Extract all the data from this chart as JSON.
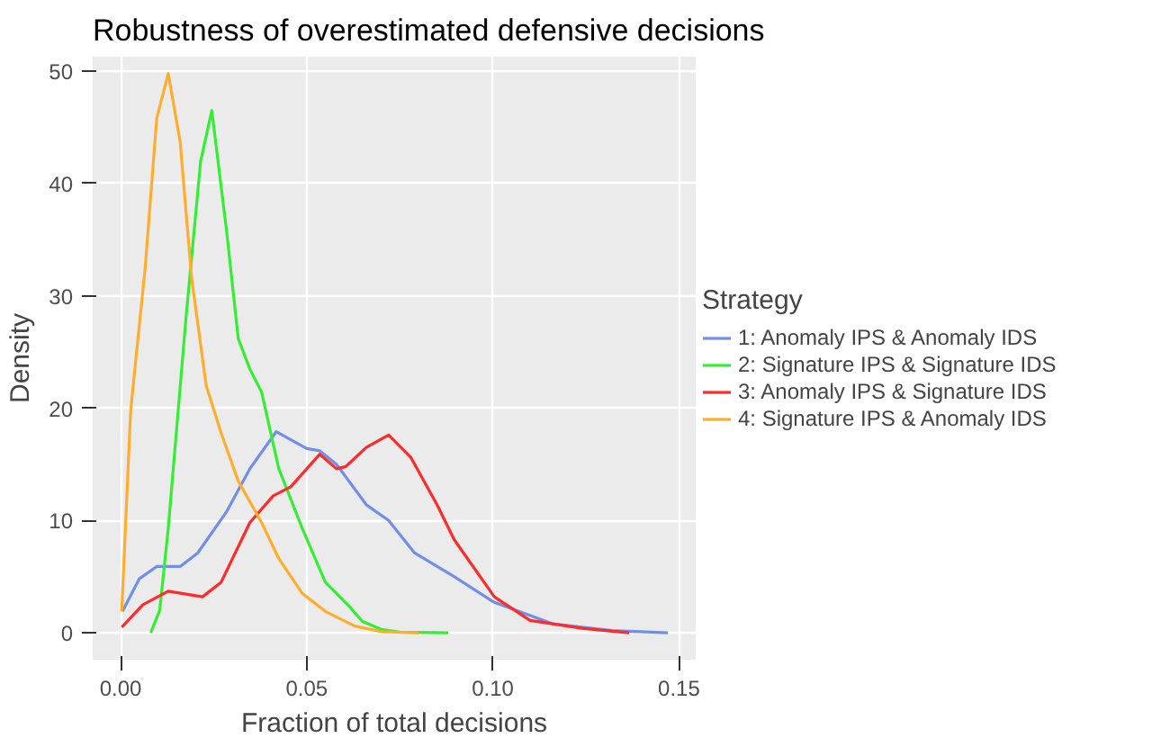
{
  "chart_data": {
    "type": "line",
    "title": "Robustness of overestimated defensive decisions",
    "xlabel": "Fraction of total decisions",
    "ylabel": "Density",
    "legend_title": "Strategy",
    "legend": "right",
    "grid": true,
    "marker": "none",
    "line_style": "solid",
    "xlim": [
      -0.0075,
      0.1545
    ],
    "ylim": [
      -2.4,
      51.3
    ],
    "xticks": [
      {
        "value": 0,
        "label": "0.00"
      },
      {
        "value": 0.05,
        "label": "0.05"
      },
      {
        "value": 0.1,
        "label": "0.10"
      },
      {
        "value": 0.15,
        "label": "0.15"
      }
    ],
    "yticks": [
      0,
      10,
      20,
      30,
      40,
      50
    ],
    "series": [
      {
        "name": "1: Anomaly IPS & Anomaly IDS",
        "color": "#6f8fe8",
        "x": [
          0.0005,
          0.005,
          0.0097,
          0.016,
          0.0207,
          0.0285,
          0.0347,
          0.0418,
          0.05,
          0.0535,
          0.058,
          0.066,
          0.072,
          0.079,
          0.0896,
          0.1004,
          0.116,
          0.132,
          0.147
        ],
        "values": [
          1.9,
          4.8,
          5.9,
          5.9,
          7.1,
          10.8,
          14.6,
          17.9,
          16.4,
          16.2,
          15,
          11.4,
          10,
          7.1,
          5,
          2.7,
          0.8,
          0.2,
          0
        ]
      },
      {
        "name": "2: Signature IPS & Signature IDS",
        "color": "#33ee33",
        "x": [
          0.0081,
          0.0105,
          0.0128,
          0.0175,
          0.0215,
          0.0245,
          0.0285,
          0.0316,
          0.0347,
          0.0379,
          0.0425,
          0.0488,
          0.055,
          0.0613,
          0.065,
          0.07,
          0.075,
          0.088
        ],
        "values": [
          0,
          2,
          9.3,
          27.8,
          42,
          46.5,
          35.7,
          26.2,
          23.5,
          21.4,
          14.6,
          9.3,
          4.5,
          2.4,
          1,
          0.3,
          0.05,
          0
        ]
      },
      {
        "name": "3: Anomaly IPS & Signature IDS",
        "color": "#ff2a2a",
        "x": [
          0.0003,
          0.006,
          0.0128,
          0.022,
          0.027,
          0.0347,
          0.041,
          0.0457,
          0.0535,
          0.058,
          0.0605,
          0.066,
          0.072,
          0.078,
          0.085,
          0.0896,
          0.1004,
          0.11,
          0.124,
          0.1366
        ],
        "values": [
          0.5,
          2.5,
          3.7,
          3.2,
          4.5,
          9.8,
          12.2,
          13,
          15.9,
          14.6,
          14.8,
          16.5,
          17.6,
          15.6,
          11.4,
          8.3,
          3.2,
          1.1,
          0.4,
          0
        ]
      },
      {
        "name": "4: Signature IPS & Anomaly IDS",
        "color": "#ffad2a",
        "x": [
          0.0003,
          0.0027,
          0.0066,
          0.0097,
          0.0128,
          0.016,
          0.0191,
          0.023,
          0.027,
          0.0316,
          0.0379,
          0.0425,
          0.0488,
          0.055,
          0.0629,
          0.07,
          0.08
        ],
        "values": [
          1.9,
          19.8,
          32.5,
          45.8,
          49.8,
          43.7,
          31.5,
          22,
          17.8,
          13.5,
          9.8,
          6.6,
          3.5,
          1.9,
          0.6,
          0.1,
          0
        ]
      }
    ]
  }
}
